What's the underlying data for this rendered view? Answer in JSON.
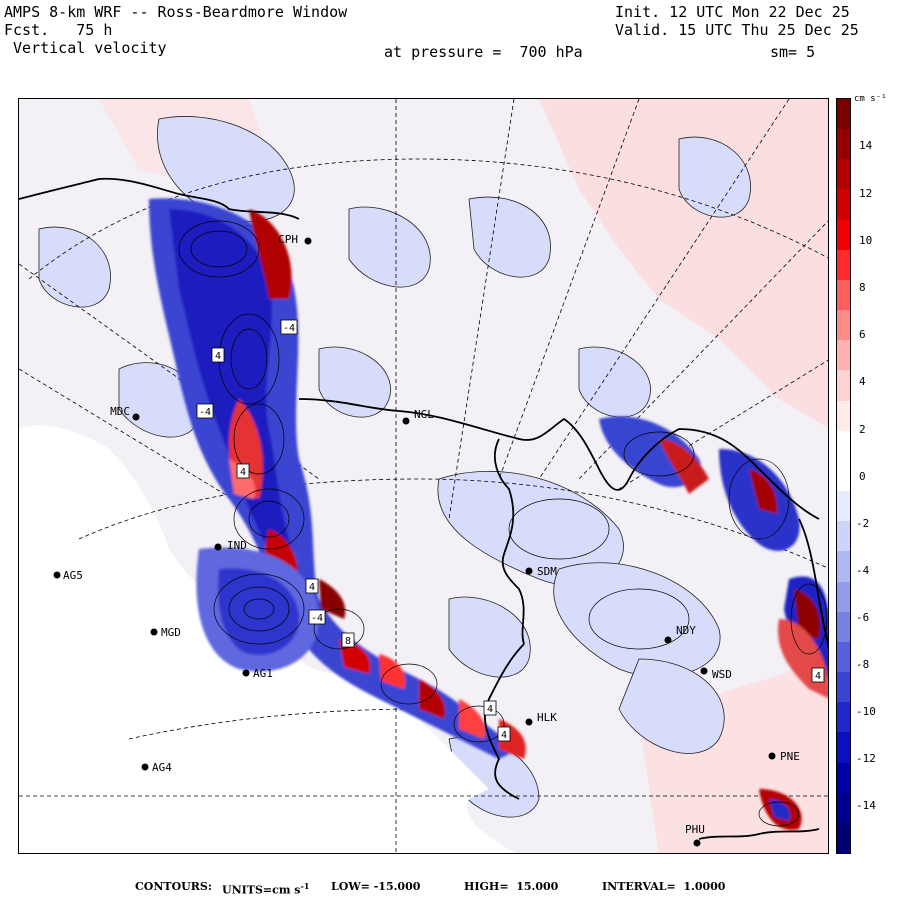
{
  "header": {
    "title": "AMPS 8-km WRF -- Ross-Beardmore Window",
    "forecast_label": "Fcst.",
    "forecast_hours": "75 h",
    "field": "Vertical velocity",
    "init": "Init. 12 UTC Mon 22 Dec 25",
    "valid": "Valid. 15 UTC Thu 25 Dec 25",
    "pressure_label": "at pressure =",
    "pressure_value": "700 hPa",
    "smoothing": "sm= 5"
  },
  "stations": [
    {
      "name": "CPH"
    },
    {
      "name": "MDC"
    },
    {
      "name": "NGL"
    },
    {
      "name": "IND"
    },
    {
      "name": "AG5"
    },
    {
      "name": "MGD"
    },
    {
      "name": "AG1"
    },
    {
      "name": "AG4"
    },
    {
      "name": "SDM"
    },
    {
      "name": "NDY"
    },
    {
      "name": "WSD"
    },
    {
      "name": "HLK"
    },
    {
      "name": "PNE"
    },
    {
      "name": "PHU"
    }
  ],
  "contour_labels": [
    "4",
    "-4",
    "4",
    "4",
    "8",
    "-4",
    "4",
    "4",
    "-4",
    "4"
  ],
  "colorbar": {
    "units": "cm s⁻¹",
    "ticks": [
      "14",
      "12",
      "10",
      "8",
      "6",
      "4",
      "2",
      "0",
      "-2",
      "-4",
      "-6",
      "-8",
      "-10",
      "-12",
      "-14"
    ],
    "colors": [
      "#7a0000",
      "#950000",
      "#b30000",
      "#d10000",
      "#f00000",
      "#ff2a2a",
      "#ff5e5e",
      "#ff8a8a",
      "#ffb0b0",
      "#ffd2d2",
      "#ffeaea",
      "#ffffff",
      "#ffffff",
      "#e8ebff",
      "#cdd3fb",
      "#b0b8f4",
      "#929bec",
      "#7580e4",
      "#5660dc",
      "#3a45d4",
      "#2027cc",
      "#0a0fc0",
      "#0000a8",
      "#00008e",
      "#000072"
    ]
  },
  "footer": {
    "contours": "CONTOURS:",
    "units_label": "UNITS=cm s",
    "units_exp": "-1",
    "low_label": "LOW=",
    "low": "-15.000",
    "high_label": "HIGH=",
    "high": "15.000",
    "interval_label": "INTERVAL=",
    "interval": "1.0000"
  }
}
